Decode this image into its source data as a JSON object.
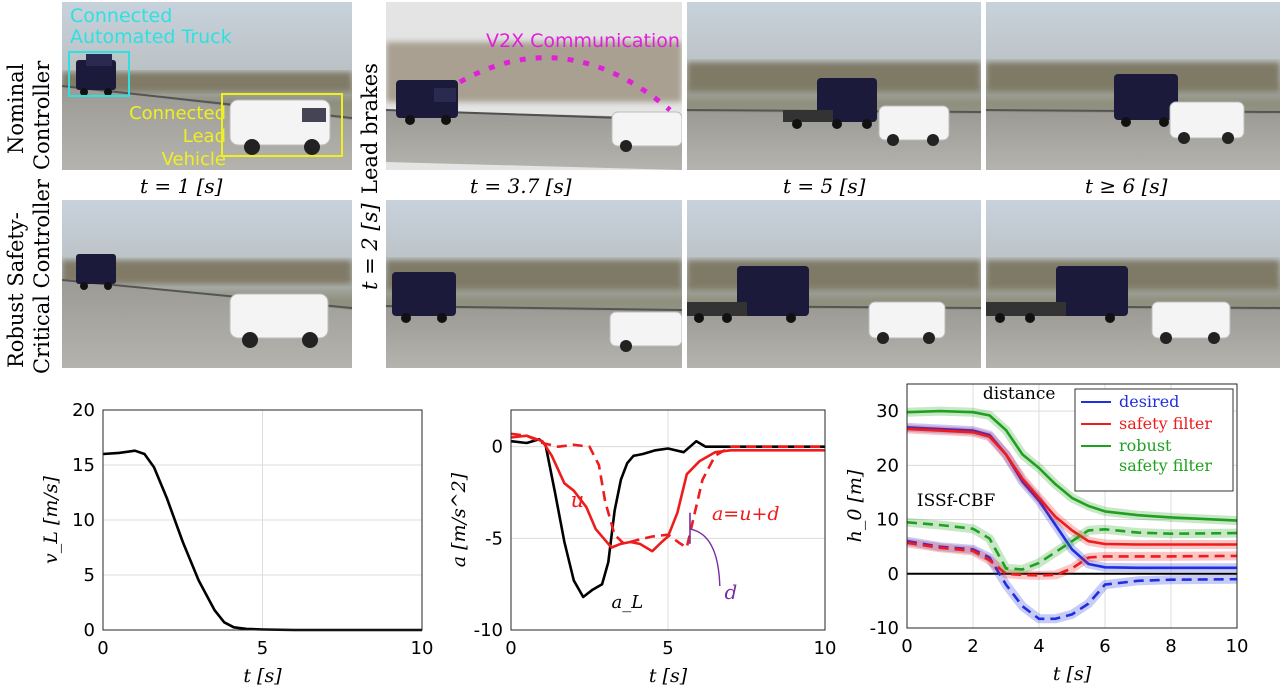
{
  "row_labels": {
    "nominal_line1": "Nominal",
    "nominal_line2": "Controller",
    "robust_line1": "Robust Safety-",
    "robust_line2": "Critical Controller",
    "lead_brakes": "Lead brakes",
    "t2": "t = 2 [s]"
  },
  "captions": {
    "c1": "t = 1 [s]",
    "c2": "t = 3.7 [s]",
    "c3": "t = 5 [s]",
    "c4": "t ≥ 6 [s]"
  },
  "photo_labels": {
    "truck": "Connected Automated Truck",
    "lead_line1": "Connected",
    "lead_line2": "Lead",
    "lead_line3": "Vehicle",
    "v2x": "V2X Communication"
  },
  "colors": {
    "cyan": "#2fe0e0",
    "yellow": "#f0f020",
    "magenta": "#e020d8",
    "blue": "#1f2fe0",
    "red": "#ee1c1c",
    "green": "#1fa01f",
    "purple": "#7a2ea0"
  },
  "chart_data": [
    {
      "type": "line",
      "xlabel": "t [s]",
      "ylabel": "v_L [m/s]",
      "xlim": [
        0,
        10
      ],
      "ylim": [
        0,
        20
      ],
      "xticks": [
        0,
        5,
        10
      ],
      "yticks": [
        0,
        5,
        10,
        15,
        20
      ],
      "grid": true,
      "series": [
        {
          "x": [
            0,
            0.5,
            1.0,
            1.3,
            1.6,
            2.0,
            2.5,
            3.0,
            3.5,
            3.8,
            4.1,
            4.5,
            5.0,
            6.0,
            7.0,
            8.0,
            10.0
          ],
          "y": [
            16.0,
            16.1,
            16.3,
            16.0,
            14.8,
            12.0,
            8.0,
            4.5,
            1.8,
            0.7,
            0.25,
            0.1,
            0.05,
            0.0,
            0.0,
            0.0,
            0.0
          ]
        }
      ]
    },
    {
      "type": "line",
      "xlabel": "t [s]",
      "ylabel": "a [m/s^2]",
      "xlim": [
        0,
        10
      ],
      "ylim": [
        -10,
        2
      ],
      "xticks": [
        0,
        5,
        10
      ],
      "yticks": [
        -10,
        -5,
        0
      ],
      "grid": true,
      "annotations": [
        "u",
        "a=u+d",
        "d",
        "a_L"
      ],
      "series": [
        {
          "style": "solid",
          "color_key": "black",
          "x": [
            0,
            0.5,
            0.9,
            1.1,
            1.4,
            1.7,
            2.0,
            2.3,
            2.6,
            2.9,
            3.1,
            3.3,
            3.5,
            3.7,
            3.9,
            4.2,
            4.6,
            5.0,
            5.5,
            5.9,
            6.2,
            7.0,
            10.0
          ],
          "y": [
            0.3,
            0.2,
            0.4,
            0.1,
            -2.5,
            -5.2,
            -7.3,
            -8.2,
            -7.8,
            -7.5,
            -6.3,
            -3.5,
            -1.8,
            -0.9,
            -0.5,
            -0.4,
            -0.2,
            -0.1,
            -0.3,
            0.3,
            0.0,
            0.0,
            0.0
          ]
        },
        {
          "style": "solid",
          "color_key": "red",
          "x": [
            0,
            0.5,
            1.0,
            1.3,
            1.7,
            2.0,
            2.4,
            2.7,
            3.0,
            3.2,
            3.5,
            3.8,
            4.1,
            4.5,
            4.8,
            5.0,
            5.3,
            5.6,
            6.0,
            6.5,
            7.0,
            10.0
          ],
          "y": [
            0.5,
            0.6,
            0.3,
            -0.5,
            -2.0,
            -2.4,
            -3.3,
            -4.5,
            -5.1,
            -5.5,
            -5.3,
            -5.2,
            -5.3,
            -5.7,
            -5.2,
            -4.9,
            -3.6,
            -1.5,
            -0.8,
            -0.3,
            -0.2,
            -0.2
          ]
        },
        {
          "style": "dashed",
          "color_key": "red",
          "x": [
            0,
            0.5,
            1.0,
            1.5,
            2.0,
            2.5,
            2.8,
            3.0,
            3.3,
            3.6,
            4.0,
            4.5,
            5.0,
            5.4,
            5.6,
            5.8,
            6.1,
            6.5,
            7.0,
            10.0
          ],
          "y": [
            0.7,
            0.6,
            0.2,
            0.0,
            0.1,
            0.0,
            -1.0,
            -3.0,
            -4.8,
            -5.3,
            -5.1,
            -4.9,
            -4.8,
            -5.3,
            -5.5,
            -4.0,
            -1.8,
            -0.5,
            0.0,
            0.0
          ]
        }
      ]
    },
    {
      "type": "line",
      "xlabel": "t [s]",
      "ylabel": "h_0 [m]",
      "xlim": [
        0,
        10
      ],
      "ylim": [
        -10,
        35
      ],
      "xticks": [
        0,
        2,
        4,
        6,
        8,
        10
      ],
      "yticks": [
        -10,
        0,
        10,
        20,
        30
      ],
      "grid": true,
      "annotations": [
        "distance",
        "ISSf-CBF"
      ],
      "legend": {
        "position": "top-right",
        "entries": [
          "desired",
          "safety filter",
          "robust safety filter"
        ]
      },
      "series": [
        {
          "name": "desired",
          "style": "solid",
          "color_key": "blue",
          "x": [
            0,
            1,
            2,
            2.5,
            3,
            3.5,
            4,
            4.5,
            5,
            5.5,
            6,
            7,
            8,
            10
          ],
          "y": [
            27.0,
            26.7,
            26.4,
            25.6,
            22.0,
            17.0,
            13.5,
            9.0,
            4.5,
            1.8,
            1.2,
            1.1,
            1.1,
            1.1
          ]
        },
        {
          "name": "safety filter",
          "style": "solid",
          "color_key": "red",
          "x": [
            0,
            1,
            2,
            2.5,
            3,
            3.5,
            4,
            4.5,
            5,
            5.5,
            6,
            7,
            8,
            10
          ],
          "y": [
            26.7,
            26.4,
            26.1,
            25.3,
            22.0,
            17.5,
            14.0,
            10.5,
            8.0,
            6.0,
            5.5,
            5.4,
            5.4,
            5.4
          ]
        },
        {
          "name": "robust safety filter",
          "style": "solid",
          "color_key": "green",
          "x": [
            0,
            1,
            2,
            2.5,
            3,
            3.5,
            4,
            4.5,
            5,
            5.5,
            6,
            7,
            8,
            10
          ],
          "y": [
            29.8,
            30.0,
            29.8,
            29.2,
            26.5,
            22.0,
            19.5,
            16.5,
            14.0,
            12.5,
            11.5,
            10.8,
            10.4,
            9.8
          ]
        },
        {
          "name": "desired",
          "style": "dashed",
          "color_key": "blue",
          "x": [
            0,
            1,
            2,
            2.5,
            3,
            3.5,
            4,
            4.5,
            5,
            5.5,
            6,
            7,
            8,
            10
          ],
          "y": [
            6.0,
            5.0,
            4.5,
            3.0,
            -2.0,
            -6.0,
            -8.3,
            -8.3,
            -7.5,
            -5.5,
            -2.0,
            -1.3,
            -1.1,
            -1.0
          ]
        },
        {
          "name": "safety filter",
          "style": "dashed",
          "color_key": "red",
          "x": [
            0,
            1,
            2,
            2.5,
            3,
            3.5,
            4,
            4.5,
            5,
            5.5,
            6,
            7,
            8,
            10
          ],
          "y": [
            5.7,
            4.8,
            4.2,
            2.5,
            0.0,
            -0.2,
            -0.3,
            -0.2,
            1.0,
            3.0,
            3.2,
            3.2,
            3.2,
            3.3
          ]
        },
        {
          "name": "robust safety filter",
          "style": "dashed",
          "color_key": "green",
          "x": [
            0,
            1,
            2,
            2.5,
            3,
            3.5,
            4,
            4.5,
            5,
            5.5,
            6,
            7,
            8,
            10
          ],
          "y": [
            9.5,
            9.0,
            8.3,
            6.5,
            1.0,
            0.8,
            2.0,
            4.0,
            6.0,
            8.0,
            8.2,
            7.6,
            7.4,
            7.5
          ]
        }
      ]
    }
  ]
}
